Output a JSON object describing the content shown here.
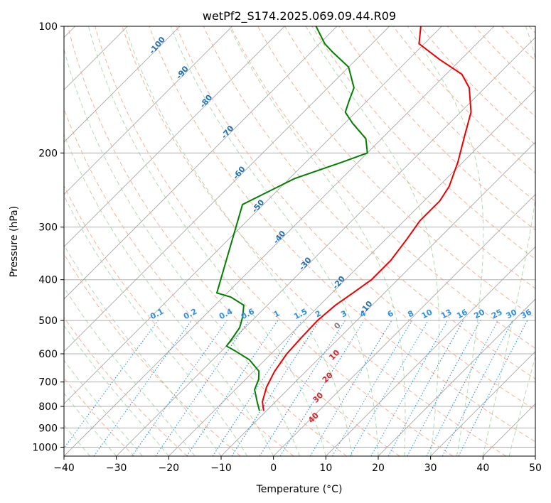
{
  "chart_data": {
    "type": "line",
    "title": "wetPf2_S174.2025.069.09.44.R09",
    "xlabel": "Temperature (°C)",
    "ylabel": "Pressure (hPa)",
    "xlim": [
      -40,
      50
    ],
    "ylim": [
      1050,
      100
    ],
    "y_scale": "log",
    "skew": "skew-T log-P",
    "x_ticks": [
      "−40",
      "−30",
      "−20",
      "−10",
      "0",
      "10",
      "20",
      "30",
      "40",
      "50"
    ],
    "y_ticks": [
      "100",
      "200",
      "300",
      "400",
      "500",
      "600",
      "700",
      "800",
      "900",
      "1000"
    ],
    "grid": true,
    "colors": {
      "temperature": "#ee0000",
      "dewpoint": "#008000",
      "dry_adiabat": "#f4a582",
      "moist_adiabat": "#8fca8f",
      "mixing_ratio": "#2f8fe8",
      "isotherm": "#a0a0a0"
    },
    "series": [
      {
        "points": [
          {
            "p": 820,
            "t": -10.5
          },
          {
            "p": 780,
            "t": -12.5
          },
          {
            "p": 720,
            "t": -14.5
          },
          {
            "p": 660,
            "t": -16.0
          },
          {
            "p": 600,
            "t": -17.0
          },
          {
            "p": 550,
            "t": -17.3
          },
          {
            "p": 500,
            "t": -17.5
          },
          {
            "p": 460,
            "t": -17.0
          },
          {
            "p": 430,
            "t": -16.0
          },
          {
            "p": 400,
            "t": -15.0
          },
          {
            "p": 360,
            "t": -15.0
          },
          {
            "p": 320,
            "t": -16.0
          },
          {
            "p": 290,
            "t": -17.0
          },
          {
            "p": 260,
            "t": -17.0
          },
          {
            "p": 240,
            "t": -18.0
          },
          {
            "p": 210,
            "t": -21.0
          },
          {
            "p": 180,
            "t": -25.0
          },
          {
            "p": 160,
            "t": -28.0
          },
          {
            "p": 140,
            "t": -33.0
          },
          {
            "p": 130,
            "t": -37.0
          },
          {
            "p": 120,
            "t": -44.0
          },
          {
            "p": 110,
            "t": -51.0
          },
          {
            "p": 100,
            "t": -54.0
          }
        ]
      },
      {
        "points": [
          {
            "p": 820,
            "t": -11.3
          },
          {
            "p": 780,
            "t": -13.5
          },
          {
            "p": 730,
            "t": -16.3
          },
          {
            "p": 690,
            "t": -17.5
          },
          {
            "p": 660,
            "t": -19.0
          },
          {
            "p": 620,
            "t": -23.0
          },
          {
            "p": 590,
            "t": -27.5
          },
          {
            "p": 575,
            "t": -30.0
          },
          {
            "p": 555,
            "t": -30.3
          },
          {
            "p": 520,
            "t": -31.0
          },
          {
            "p": 490,
            "t": -32.5
          },
          {
            "p": 460,
            "t": -34.5
          },
          {
            "p": 440,
            "t": -38.5
          },
          {
            "p": 430,
            "t": -42.0
          },
          {
            "p": 265,
            "t": -54.0
          },
          {
            "p": 230,
            "t": -49.0
          },
          {
            "p": 210,
            "t": -43.0
          },
          {
            "p": 200,
            "t": -40.0
          },
          {
            "p": 185,
            "t": -43.0
          },
          {
            "p": 170,
            "t": -48.5
          },
          {
            "p": 160,
            "t": -52.0
          },
          {
            "p": 150,
            "t": -53.5
          },
          {
            "p": 140,
            "t": -55.0
          },
          {
            "p": 125,
            "t": -60.0
          },
          {
            "p": 115,
            "t": -66.0
          },
          {
            "p": 110,
            "t": -69.0
          },
          {
            "p": 100,
            "t": -74.0
          }
        ]
      }
    ],
    "dry_adiabat_labels": [
      {
        "text": "0",
        "value": 0
      },
      {
        "text": "10",
        "value": 10
      },
      {
        "text": "20",
        "value": 20
      },
      {
        "text": "30",
        "value": 30
      },
      {
        "text": "40",
        "value": 40
      }
    ],
    "moist_adiabat_labels": [
      {
        "text": "-100",
        "value": -100
      },
      {
        "text": "-90",
        "value": -90
      },
      {
        "text": "-80",
        "value": -80
      },
      {
        "text": "-70",
        "value": -70
      },
      {
        "text": "-60",
        "value": -60
      },
      {
        "text": "-50",
        "value": -50
      },
      {
        "text": "-40",
        "value": -40
      },
      {
        "text": "-30",
        "value": -30
      },
      {
        "text": "-20",
        "value": -20
      },
      {
        "text": "-10",
        "value": -10
      }
    ],
    "mixing_ratio_labels": [
      "0.1",
      "0.2",
      "0.4",
      "0.6",
      "1",
      "1.5",
      "2",
      "3",
      "4",
      "6",
      "8",
      "10",
      "13",
      "16",
      "20",
      "25",
      "30",
      "36"
    ],
    "mixing_ratio_label_pressure": 500
  }
}
